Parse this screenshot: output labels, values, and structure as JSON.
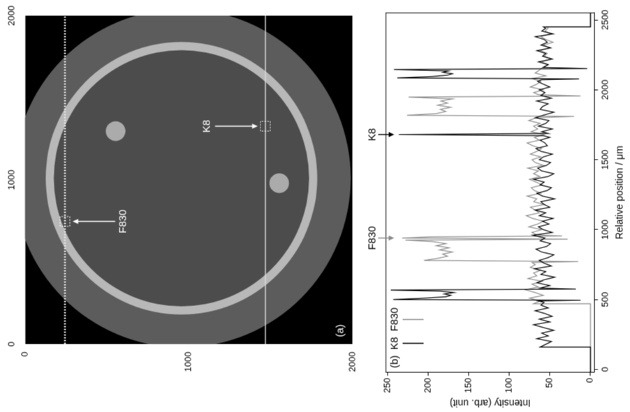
{
  "chart_data": [
    {
      "type": "image",
      "label": "(a)",
      "xlim": [
        0,
        2000
      ],
      "xticks": [
        0,
        1000,
        2000
      ],
      "ylim": [
        2000,
        0
      ],
      "yticks": [
        0,
        1000,
        2000
      ],
      "disks": [
        {
          "x": 1010,
          "y": 960,
          "r": 1030
        }
      ],
      "rings": [
        {
          "x": 1010,
          "y": 955,
          "r_outer": 830,
          "r_inner": 780
        }
      ],
      "particles": [
        {
          "x": 1297,
          "y": 553,
          "r": 60
        },
        {
          "x": 980,
          "y": 1553,
          "r": 60
        }
      ],
      "series": [
        {
          "color": "#e6e6e6",
          "line_style": "dotted",
          "x": [
            0,
            2000
          ],
          "values": [
            243,
            243
          ]
        },
        {
          "color": "#d9d9d9",
          "line_style": "solid",
          "x": [
            0,
            2000
          ],
          "values": [
            1468,
            1468
          ]
        }
      ],
      "markers": [
        {
          "label": "F830",
          "x": 747,
          "y": 243
        },
        {
          "label": "K8",
          "x": 1327,
          "y": 1468
        }
      ]
    },
    {
      "type": "line",
      "label": "(b)",
      "x_label": "Relative position / μm",
      "y_label": "Intensity (arb. unit)",
      "xlim": [
        -20,
        2550
      ],
      "xticks": [
        0,
        500,
        1000,
        1500,
        2000,
        2500
      ],
      "ylim": [
        -5,
        252
      ],
      "yticks": [
        0,
        50,
        100,
        150,
        200,
        250
      ],
      "grid": false,
      "legend": "upper left",
      "series": [
        {
          "name": "K8",
          "color": "#000000",
          "x": [
            -20,
            160,
            160,
            180,
            200,
            220,
            240,
            260,
            280,
            300,
            320,
            340,
            360,
            380,
            400,
            420,
            440,
            460,
            480,
            490,
            495,
            500,
            510,
            520,
            530,
            540,
            550,
            560,
            568,
            575,
            582,
            600,
            620,
            640,
            660,
            680,
            700,
            720,
            740,
            760,
            780,
            800,
            820,
            840,
            860,
            880,
            900,
            920,
            940,
            960,
            980,
            1000,
            1020,
            1040,
            1060,
            1080,
            1100,
            1120,
            1140,
            1160,
            1180,
            1200,
            1220,
            1240,
            1260,
            1280,
            1300,
            1320,
            1340,
            1360,
            1380,
            1400,
            1420,
            1440,
            1460,
            1480,
            1500,
            1520,
            1540,
            1560,
            1580,
            1600,
            1620,
            1640,
            1660,
            1672,
            1680,
            1688,
            1700,
            1720,
            1740,
            1760,
            1780,
            1800,
            1820,
            1840,
            1860,
            1880,
            1900,
            1920,
            1940,
            1960,
            1980,
            2000,
            2020,
            2040,
            2060,
            2072,
            2078,
            2085,
            2095,
            2105,
            2115,
            2125,
            2135,
            2145,
            2152,
            2160,
            2180,
            2200,
            2220,
            2240,
            2260,
            2280,
            2300,
            2320,
            2340,
            2360,
            2380,
            2400,
            2420,
            2440,
            2450,
            2450,
            2550
          ],
          "values": [
            0,
            0,
            62,
            55,
            48,
            66,
            52,
            60,
            45,
            58,
            70,
            50,
            63,
            47,
            56,
            68,
            52,
            61,
            57,
            64,
            12,
            243,
            205,
            178,
            172,
            180,
            168,
            185,
            246,
            18,
            62,
            50,
            66,
            58,
            44,
            61,
            55,
            69,
            48,
            57,
            63,
            52,
            45,
            60,
            67,
            54,
            49,
            62,
            56,
            71,
            47,
            58,
            64,
            51,
            59,
            46,
            63,
            55,
            68,
            50,
            57,
            61,
            44,
            59,
            66,
            53,
            48,
            62,
            57,
            70,
            52,
            45,
            60,
            65,
            54,
            49,
            63,
            58,
            47,
            61,
            67,
            53,
            56,
            62,
            50,
            58,
            236,
            52,
            60,
            47,
            64,
            55,
            51,
            68,
            57,
            45,
            62,
            59,
            52,
            66,
            48,
            61,
            56,
            63,
            50,
            58,
            65,
            60,
            14,
            238,
            195,
            176,
            170,
            182,
            175,
            242,
            4,
            58,
            52,
            64,
            47,
            59,
            55,
            66,
            49,
            61,
            53,
            57,
            68,
            46,
            60,
            55,
            58,
            0,
            0
          ]
        },
        {
          "name": "F830",
          "color": "#8c8c8c",
          "x": [
            -20,
            470,
            470,
            490,
            510,
            530,
            550,
            570,
            590,
            610,
            630,
            650,
            670,
            690,
            710,
            730,
            750,
            765,
            772,
            780,
            795,
            810,
            825,
            840,
            855,
            870,
            885,
            900,
            915,
            925,
            932,
            940,
            948,
            955,
            962,
            980,
            1000,
            1020,
            1040,
            1060,
            1080,
            1100,
            1120,
            1140,
            1160,
            1180,
            1200,
            1220,
            1240,
            1260,
            1280,
            1300,
            1320,
            1340,
            1360,
            1380,
            1400,
            1420,
            1440,
            1460,
            1480,
            1500,
            1520,
            1540,
            1560,
            1580,
            1600,
            1620,
            1640,
            1660,
            1680,
            1700,
            1720,
            1740,
            1760,
            1780,
            1800,
            1810,
            1818,
            1830,
            1845,
            1860,
            1875,
            1890,
            1905,
            1920,
            1935,
            1948,
            1956,
            1965,
            1980,
            2000,
            2020,
            2040,
            2060,
            2080,
            2100,
            2120,
            2140,
            2160,
            2180,
            2200,
            2220,
            2240,
            2260,
            2280,
            2300,
            2320,
            2340,
            2360,
            2380,
            2400,
            2420,
            2440,
            2450,
            2450,
            2550
          ],
          "values": [
            0,
            0,
            70,
            62,
            75,
            58,
            68,
            80,
            64,
            72,
            59,
            77,
            66,
            70,
            61,
            74,
            68,
            72,
            15,
            205,
            188,
            176,
            182,
            170,
            186,
            174,
            190,
            178,
            195,
            228,
            28,
            232,
            198,
            35,
            66,
            72,
            60,
            76,
            65,
            58,
            71,
            79,
            63,
            68,
            74,
            57,
            70,
            66,
            78,
            61,
            69,
            73,
            59,
            67,
            75,
            62,
            70,
            64,
            77,
            58,
            68,
            72,
            61,
            74,
            66,
            60,
            71,
            78,
            63,
            69,
            57,
            73,
            65,
            70,
            62,
            76,
            67,
            20,
            226,
            190,
            178,
            185,
            172,
            188,
            176,
            184,
            170,
            224,
            12,
            64,
            70,
            58,
            74,
            66,
            61,
            72,
            55,
            68,
            63,
            59,
            52,
            60,
            48,
            57,
            53,
            62,
            50,
            58,
            46,
            55,
            61,
            49,
            56,
            52,
            54,
            0,
            0
          ]
        }
      ],
      "annotations": [
        {
          "text": "F830",
          "x": 940
        },
        {
          "text": "K8",
          "x": 1680
        }
      ]
    }
  ]
}
